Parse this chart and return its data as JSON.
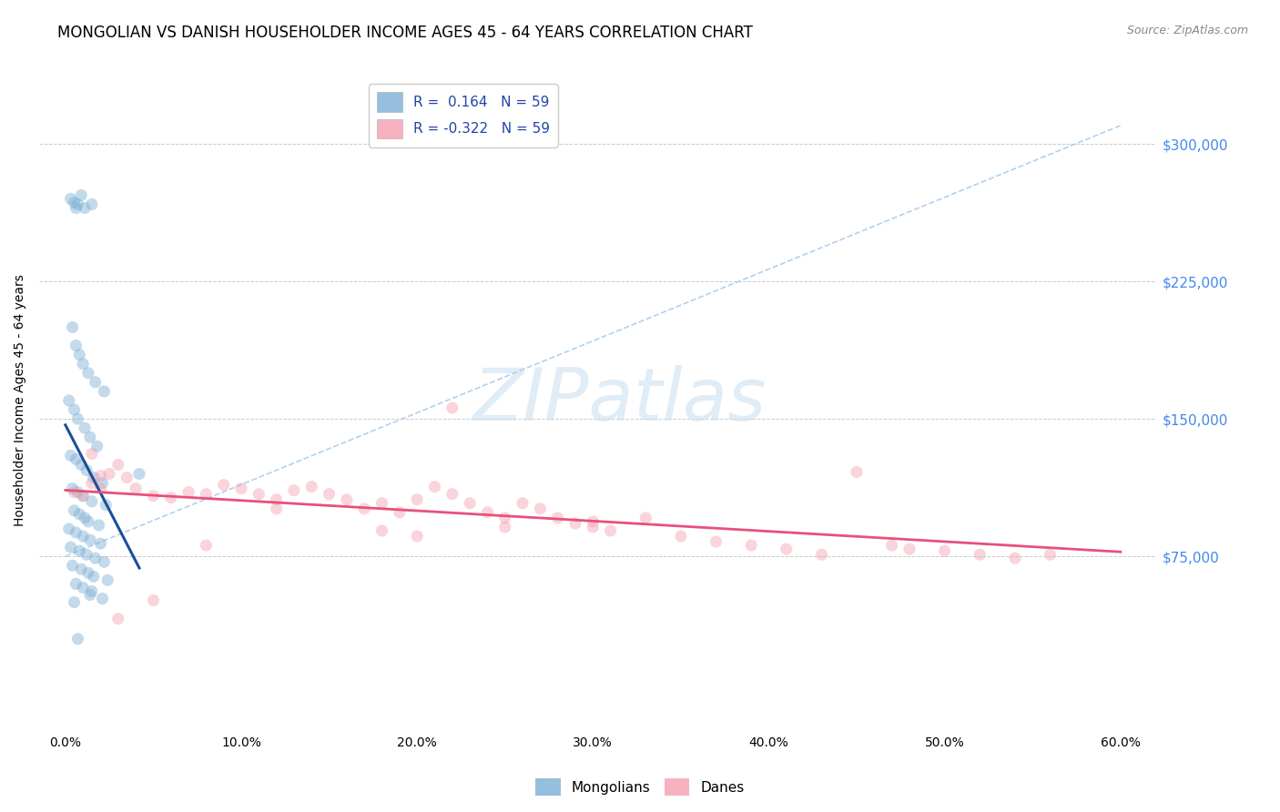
{
  "title": "MONGOLIAN VS DANISH HOUSEHOLDER INCOME AGES 45 - 64 YEARS CORRELATION CHART",
  "source": "Source: ZipAtlas.com",
  "ylabel": "Householder Income Ages 45 - 64 years",
  "xlabel_ticks": [
    "0.0%",
    "10.0%",
    "20.0%",
    "30.0%",
    "40.0%",
    "50.0%",
    "60.0%"
  ],
  "xlabel_vals": [
    0.0,
    10.0,
    20.0,
    30.0,
    40.0,
    50.0,
    60.0
  ],
  "ylabel_ticks": [
    75000,
    150000,
    225000,
    300000
  ],
  "ylabel_labels": [
    "$75,000",
    "$150,000",
    "$225,000",
    "$300,000"
  ],
  "xlim": [
    -1.5,
    62.0
  ],
  "ylim": [
    -20000,
    340000
  ],
  "mongolian_x": [
    0.3,
    0.5,
    0.6,
    0.7,
    0.9,
    1.1,
    1.5,
    0.4,
    0.6,
    0.8,
    1.0,
    1.3,
    1.7,
    2.2,
    0.2,
    0.5,
    0.7,
    1.1,
    1.4,
    1.8,
    0.3,
    0.6,
    0.9,
    1.2,
    1.6,
    2.1,
    0.4,
    0.7,
    1.0,
    1.5,
    2.3,
    0.5,
    0.8,
    1.1,
    1.3,
    1.9,
    0.2,
    0.6,
    1.0,
    1.4,
    2.0,
    0.3,
    0.8,
    1.2,
    1.7,
    2.2,
    0.4,
    0.9,
    1.3,
    4.2,
    1.6,
    2.4,
    0.6,
    1.0,
    1.5,
    1.4,
    2.1,
    0.5,
    0.7
  ],
  "mongolian_y": [
    270000,
    268000,
    265000,
    267000,
    272000,
    265000,
    267000,
    200000,
    190000,
    185000,
    180000,
    175000,
    170000,
    165000,
    160000,
    155000,
    150000,
    145000,
    140000,
    135000,
    130000,
    128000,
    125000,
    122000,
    118000,
    115000,
    112000,
    110000,
    108000,
    105000,
    103000,
    100000,
    98000,
    96000,
    94000,
    92000,
    90000,
    88000,
    86000,
    84000,
    82000,
    80000,
    78000,
    76000,
    74000,
    72000,
    70000,
    68000,
    66000,
    120000,
    64000,
    62000,
    60000,
    58000,
    56000,
    54000,
    52000,
    50000,
    30000
  ],
  "danish_x": [
    0.5,
    1.0,
    1.5,
    2.0,
    2.5,
    3.0,
    3.5,
    4.0,
    5.0,
    6.0,
    7.0,
    8.0,
    9.0,
    10.0,
    11.0,
    12.0,
    13.0,
    14.0,
    15.0,
    16.0,
    17.0,
    18.0,
    19.0,
    20.0,
    21.0,
    22.0,
    23.0,
    24.0,
    25.0,
    26.0,
    27.0,
    28.0,
    29.0,
    30.0,
    31.0,
    33.0,
    35.0,
    37.0,
    39.0,
    41.0,
    43.0,
    45.0,
    47.0,
    48.0,
    50.0,
    52.0,
    54.0,
    56.0,
    22.0,
    30.0,
    20.0,
    25.0,
    18.0,
    12.0,
    8.0,
    5.0,
    3.0,
    2.0,
    1.5
  ],
  "danish_y": [
    110000,
    108000,
    115000,
    112000,
    120000,
    125000,
    118000,
    112000,
    108000,
    107000,
    110000,
    109000,
    114000,
    112000,
    109000,
    106000,
    111000,
    113000,
    109000,
    106000,
    101000,
    104000,
    99000,
    106000,
    113000,
    109000,
    104000,
    99000,
    96000,
    104000,
    101000,
    96000,
    93000,
    91000,
    89000,
    96000,
    86000,
    83000,
    81000,
    79000,
    76000,
    121000,
    81000,
    79000,
    78000,
    76000,
    74000,
    76000,
    156000,
    94000,
    86000,
    91000,
    89000,
    101000,
    81000,
    51000,
    41000,
    119000,
    131000
  ],
  "mongolian_color": "#7BAFD4",
  "danish_color": "#F4A0B0",
  "mongolian_line_color": "#1B4F9B",
  "danish_line_color": "#E8507A",
  "ref_line_color": "#AACCEE",
  "mongolian_R": "0.164",
  "mongolian_N": "59",
  "danish_R": "-0.322",
  "danish_N": "59",
  "background_color": "#ffffff",
  "grid_color": "#CCCCCC",
  "title_fontsize": 12,
  "axis_label_fontsize": 10,
  "tick_fontsize": 10,
  "marker_size": 90,
  "marker_alpha": 0.45,
  "right_tick_color": "#4488EE",
  "watermark_color": "#C8DDEF",
  "watermark_alpha": 0.55
}
